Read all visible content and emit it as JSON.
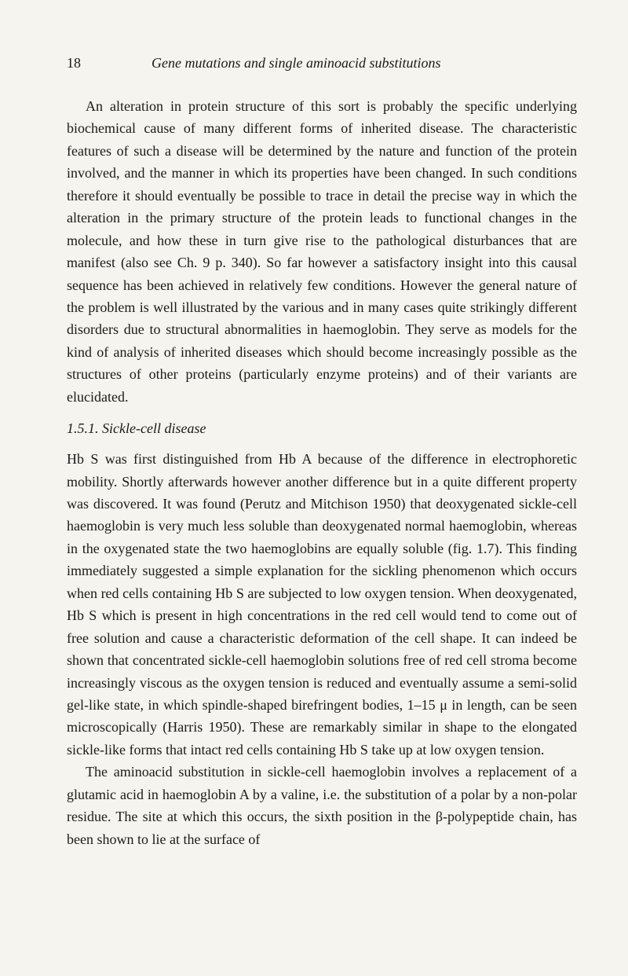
{
  "header": {
    "page_number": "18",
    "chapter_title": "Gene mutations and single aminoacid substitutions"
  },
  "paragraphs": {
    "p1": "An alteration in protein structure of this sort is probably the specific underlying biochemical cause of many different forms of inherited disease. The characteristic features of such a disease will be determined by the nature and function of the protein involved, and the manner in which its properties have been changed. In such conditions therefore it should eventually be possible to trace in detail the precise way in which the alteration in the primary structure of the protein leads to functional changes in the molecule, and how these in turn give rise to the pathological disturbances that are manifest (also see Ch. 9 p. 340). So far however a satisfactory insight into this causal sequence has been achieved in relatively few conditions. However the general nature of the problem is well illustrated by the various and in many cases quite strikingly different disorders due to structural abnormalities in haemoglobin. They serve as models for the kind of analysis of inherited diseases which should become increasingly possible as the structures of other proteins (particularly enzyme proteins) and of their variants are elucidated.",
    "section_title": "1.5.1. Sickle-cell disease",
    "p2": "Hb S was first distinguished from Hb A because of the difference in electrophoretic mobility. Shortly afterwards however another difference but in a quite different property was discovered. It was found (Perutz and Mitchison 1950) that deoxygenated sickle-cell haemoglobin is very much less soluble than deoxygenated normal haemoglobin, whereas in the oxygenated state the two haemoglobins are equally soluble (fig. 1.7). This finding immediately suggested a simple explanation for the sickling phenomenon which occurs when red cells containing Hb S are subjected to low oxygen tension. When deoxygenated, Hb S which is present in high concentrations in the red cell would tend to come out of free solution and cause a characteristic deformation of the cell shape. It can indeed be shown that concentrated sickle-cell haemoglobin solutions free of red cell stroma become increasingly viscous as the oxygen tension is reduced and eventually assume a semi-solid gel-like state, in which spindle-shaped birefringent bodies, 1–15 μ in length, can be seen microscopically (Harris 1950). These are remarkably similar in shape to the elongated sickle-like forms that intact red cells containing Hb S take up at low oxygen tension.",
    "p3": "The aminoacid substitution in sickle-cell haemoglobin involves a replacement of a glutamic acid in haemoglobin A by a valine, i.e. the substitution of a polar by a non-polar residue. The site at which this occurs, the sixth position in the β-polypeptide chain, has been shown to lie at the surface of"
  }
}
